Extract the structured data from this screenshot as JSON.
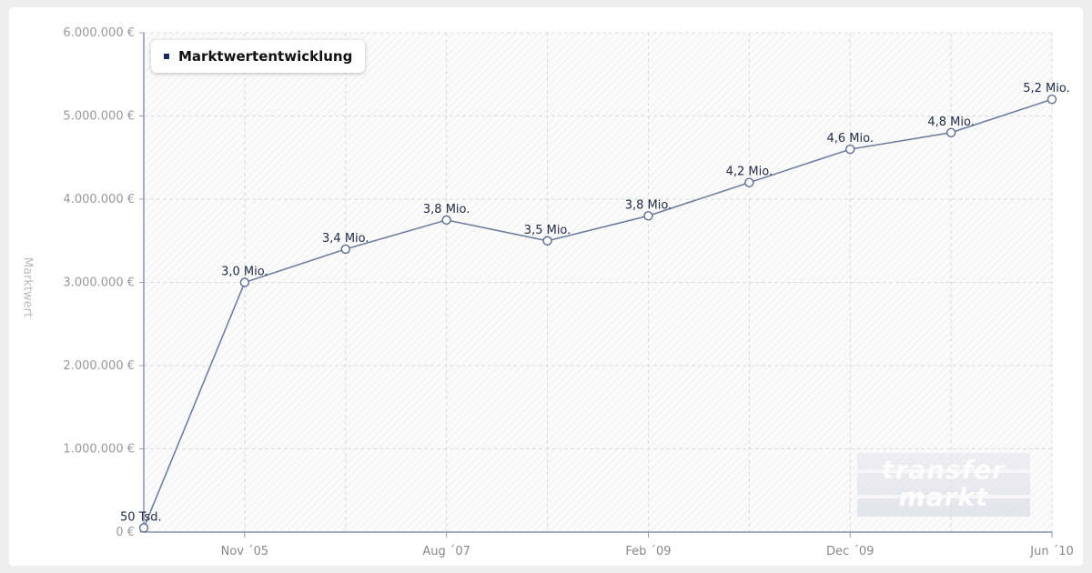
{
  "chart_data": {
    "type": "line",
    "title": "",
    "legend": {
      "label": "Marktwertentwicklung",
      "position": "top-left"
    },
    "ylabel": "Marktwert",
    "xlabel": "",
    "ylim": [
      0,
      6000000
    ],
    "yticks": [
      "0 €",
      "1.000.000 €",
      "2.000.000 €",
      "3.000.000 €",
      "4.000.000 €",
      "5.000.000 €",
      "6.000.000 €"
    ],
    "xticks": [
      "Nov ´05",
      "Aug ´07",
      "Feb ´09",
      "Dec ´09",
      "Jun ´10"
    ],
    "grid": true,
    "series": [
      {
        "color": "#6f7fa0",
        "points": [
          {
            "value": 50000,
            "label": "50 Tsd."
          },
          {
            "value": 3000000,
            "label": "3,0 Mio."
          },
          {
            "value": 3400000,
            "label": "3,4 Mio."
          },
          {
            "value": 3750000,
            "label": "3,8 Mio."
          },
          {
            "value": 3500000,
            "label": "3,5 Mio."
          },
          {
            "value": 3800000,
            "label": "3,8 Mio."
          },
          {
            "value": 4200000,
            "label": "4,2 Mio."
          },
          {
            "value": 4600000,
            "label": "4,6 Mio."
          },
          {
            "value": 4800000,
            "label": "4,8 Mio."
          },
          {
            "value": 5200000,
            "label": "5,2 Mio."
          }
        ]
      }
    ]
  },
  "watermark": {
    "line1": "transfer",
    "line2": "markt"
  }
}
